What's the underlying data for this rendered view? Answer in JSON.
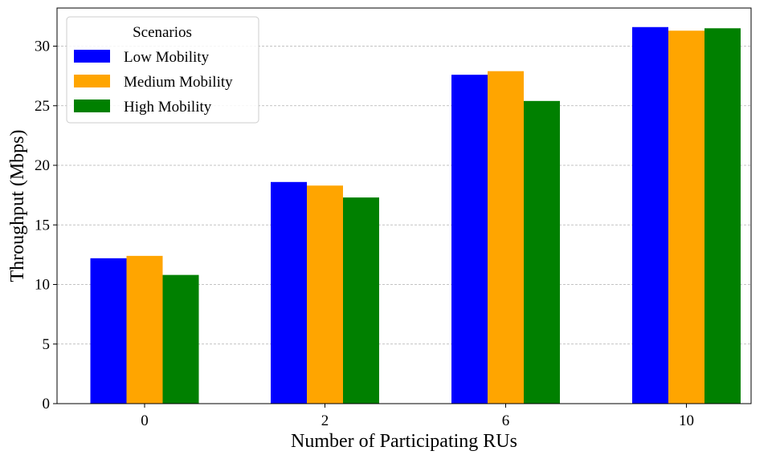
{
  "chart_data": {
    "type": "bar",
    "title": "",
    "xlabel": "Number of Participating RUs",
    "ylabel": "Throughput (Mbps)",
    "categories": [
      "0",
      "2",
      "6",
      "10"
    ],
    "ylim": [
      0,
      33.2
    ],
    "yticks": [
      0,
      5,
      10,
      15,
      20,
      25,
      30
    ],
    "grid": true,
    "legend": {
      "title": "Scenarios",
      "placement": "top-left"
    },
    "series": [
      {
        "name": "Low Mobility",
        "color": "#0000ff",
        "values": [
          12.2,
          18.6,
          27.6,
          31.6
        ]
      },
      {
        "name": "Medium Mobility",
        "color": "#ffa500",
        "values": [
          12.4,
          18.3,
          27.9,
          31.3
        ]
      },
      {
        "name": "High Mobility",
        "color": "#008000",
        "values": [
          10.8,
          17.3,
          25.4,
          31.5
        ]
      }
    ]
  }
}
